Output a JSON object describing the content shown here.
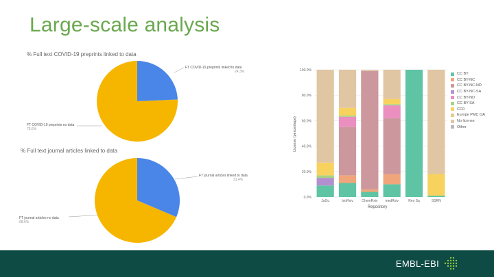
{
  "slide": {
    "title": "Large-scale analysis",
    "footer_brand": "EMBL-EBI"
  },
  "pie1": {
    "title": "% Full text COVID-19 preprints linked to data",
    "callout_linked_label": "FT COVID-19 preprints linked to data",
    "callout_linked_pct": "24.3%",
    "callout_nodata_label": "FT COVID-19 preprints no data",
    "callout_nodata_pct": "75.6%",
    "linked_pct": 24.3,
    "colors": {
      "linked": "#4a86e8",
      "nodata": "#f6b600"
    }
  },
  "pie2": {
    "title": "% Full text journal articles linked to data",
    "callout_linked_label": "FT journal articles linked to data",
    "callout_linked_pct": "31.4%",
    "callout_nodata_label": "FT journal articles no data",
    "callout_nodata_pct": "68.6%",
    "linked_pct": 31.4,
    "colors": {
      "linked": "#4a86e8",
      "nodata": "#f6b600"
    }
  },
  "chart_data": {
    "type": "bar",
    "stacked": true,
    "title": "",
    "xlabel": "Repository",
    "ylabel": "License (percentage)",
    "ylim": [
      0,
      100
    ],
    "yticks": [
      "0.0%",
      "20.0%",
      "40.0%",
      "60.0%",
      "80.0%",
      "100.0%"
    ],
    "grid": true,
    "legend_position": "right",
    "categories": [
      "JuGu",
      "bioRxiv",
      "ChemRxiv",
      "medRxiv",
      "Res Sq",
      "SSRN"
    ],
    "series": [
      {
        "name": "CC BY",
        "color": "#5ec4a4",
        "values": [
          9,
          11,
          4,
          10,
          100,
          1
        ]
      },
      {
        "name": "CC BY-NC",
        "color": "#f0a57a",
        "values": [
          0,
          6,
          2,
          8,
          0,
          0
        ]
      },
      {
        "name": "CC BY-NC-ND",
        "color": "#cc989e",
        "values": [
          0,
          38,
          93,
          44,
          0,
          0
        ]
      },
      {
        "name": "CC BY-NC-SA",
        "color": "#b38fcf",
        "values": [
          6,
          0,
          0,
          0,
          0,
          0
        ]
      },
      {
        "name": "CC BY-ND",
        "color": "#ea8fc0",
        "values": [
          0,
          8,
          0,
          10,
          0,
          0
        ]
      },
      {
        "name": "CC BY-SA",
        "color": "#a8d283",
        "values": [
          2,
          1,
          0,
          1,
          0,
          0
        ]
      },
      {
        "name": "CC0",
        "color": "#f7d25f",
        "values": [
          10,
          6,
          0,
          4,
          0,
          17
        ]
      },
      {
        "name": "Europe PMC OA",
        "color": "#e9c98f",
        "values": [
          0,
          0,
          0,
          0,
          0,
          0
        ]
      },
      {
        "name": "No license",
        "color": "#e0c6a2",
        "values": [
          73,
          30,
          1,
          23,
          0,
          82
        ]
      },
      {
        "name": "Other",
        "color": "#b8b8b8",
        "values": [
          0,
          0,
          0,
          0,
          0,
          0
        ]
      }
    ]
  }
}
